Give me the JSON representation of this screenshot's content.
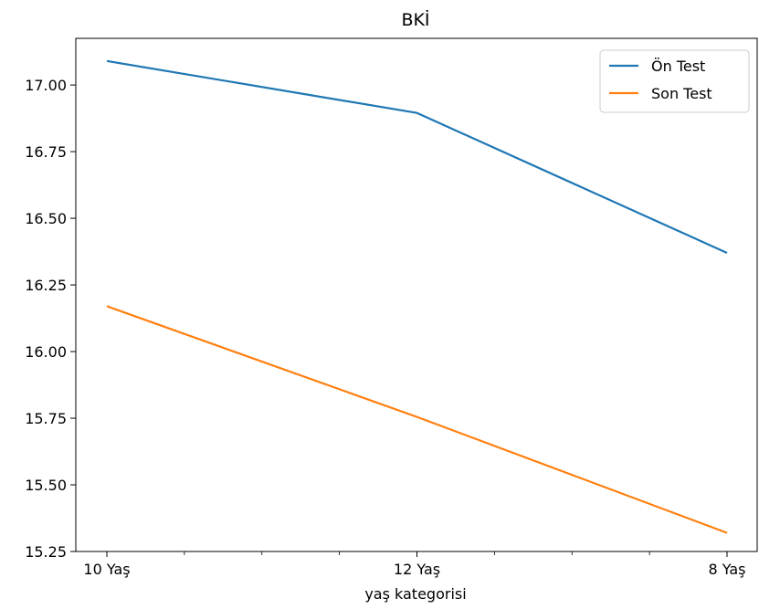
{
  "chart_data": {
    "type": "line",
    "title": "BKİ",
    "xlabel": "yaş kategorisi",
    "ylabel": "",
    "categories": [
      "10 Yaş",
      "12 Yaş",
      "8 Yaş"
    ],
    "series": [
      {
        "name": "Ön Test",
        "color": "#1f77b4",
        "values": [
          17.09,
          16.895,
          16.37
        ]
      },
      {
        "name": "Son Test",
        "color": "#ff7f0e",
        "values": [
          16.17,
          15.755,
          15.32
        ]
      }
    ],
    "ylim": [
      15.25,
      17.175
    ],
    "yticks": [
      15.25,
      15.5,
      15.75,
      16.0,
      16.25,
      16.5,
      16.75,
      17.0
    ],
    "ytick_labels": [
      "15.25",
      "15.50",
      "15.75",
      "16.00",
      "16.25",
      "16.50",
      "16.75",
      "17.00"
    ],
    "minor_xticks": 8,
    "grid": false,
    "legend_position": "top-right"
  }
}
